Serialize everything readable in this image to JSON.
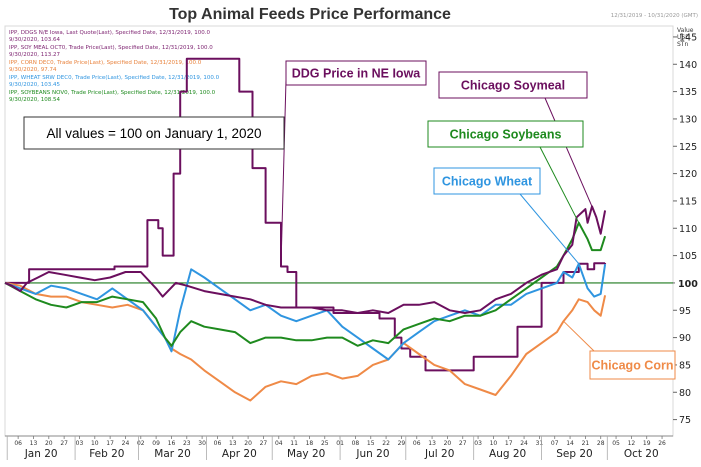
{
  "chart_data": {
    "type": "line",
    "title": "Top Animal Feeds Price Performance",
    "date_range_label": "12/31/2019 - 10/31/2020 (GMT)",
    "value_axis_label": [
      "Value",
      "USD",
      "STn"
    ],
    "ylim": [
      72,
      147
    ],
    "yticks": [
      75,
      80,
      85,
      90,
      95,
      100,
      105,
      110,
      115,
      120,
      125,
      130,
      135,
      140,
      145
    ],
    "x_day_labels": [
      "06",
      "13",
      "20",
      "27",
      "03",
      "10",
      "17",
      "24",
      "02",
      "09",
      "16",
      "23",
      "30",
      "06",
      "13",
      "20",
      "27",
      "04",
      "11",
      "18",
      "25",
      "01",
      "08",
      "15",
      "22",
      "29",
      "06",
      "13",
      "20",
      "27",
      "03",
      "10",
      "17",
      "24",
      "31",
      "07",
      "14",
      "21",
      "28",
      "05",
      "12",
      "19",
      "26"
    ],
    "months": [
      "Jan 20",
      "Feb 20",
      "Mar 20",
      "Apr 20",
      "May 20",
      "Jun 20",
      "Jul 20",
      "Aug 20",
      "Sep 20",
      "Oct 20"
    ],
    "x_start": "2019-12-31",
    "x_end": "2020-10-31",
    "legend": [
      {
        "line1": "IPP, DDGS N/E Iowa, Last Quote(Last), Specified Date, 12/31/2019, 100.0",
        "line2": "9/30/2020, 103.64",
        "color": "#7b1f6e"
      },
      {
        "line1": "IPP, SOY MEAL OCT0, Trade Price(Last), Specified Date, 12/31/2019, 100.0",
        "line2": "9/30/2020, 113.27",
        "color": "#7b1f6e"
      },
      {
        "line1": "IPP, CORN DEC0, Trade Price(Last), Specified Date, 12/31/2019, 100.0",
        "line2": "9/30/2020, 97.74",
        "color": "#e8803a"
      },
      {
        "line1": "IPP, WHEAT SRW DEC0, Trade Price(Last), Specified Date, 12/31/2019, 100.0",
        "line2": "9/30/2020, 103.45",
        "color": "#2f95e0"
      },
      {
        "line1": "IPP, SOYBEANS NOV0, Trade Price(Last), Specified Date, 12/31/2019, 100.0",
        "line2": "9/30/2020, 108.54",
        "color": "#1e8a1e"
      }
    ],
    "note": "All values = 100 on January 1, 2020",
    "reference_line": {
      "value": 100,
      "label": "100"
    },
    "series": [
      {
        "name": "DDG Price in NE Iowa",
        "color": "#6b0f5e",
        "stepped": true,
        "points": [
          [
            "2019-12-31",
            100
          ],
          [
            "2020-01-10",
            100
          ],
          [
            "2020-01-11",
            102.5
          ],
          [
            "2020-02-18",
            102.5
          ],
          [
            "2020-02-19",
            103
          ],
          [
            "2020-03-04",
            103
          ],
          [
            "2020-03-05",
            111.5
          ],
          [
            "2020-03-10",
            110
          ],
          [
            "2020-03-12",
            105
          ],
          [
            "2020-03-16",
            105
          ],
          [
            "2020-03-17",
            120
          ],
          [
            "2020-03-20",
            135
          ],
          [
            "2020-03-23",
            141
          ],
          [
            "2020-04-15",
            141
          ],
          [
            "2020-04-16",
            135
          ],
          [
            "2020-04-22",
            121
          ],
          [
            "2020-04-28",
            111
          ],
          [
            "2020-05-05",
            103
          ],
          [
            "2020-05-08",
            102
          ],
          [
            "2020-05-11",
            102
          ],
          [
            "2020-05-12",
            95.5
          ],
          [
            "2020-05-28",
            95.5
          ],
          [
            "2020-05-29",
            94.5
          ],
          [
            "2020-06-18",
            94.5
          ],
          [
            "2020-06-19",
            93.5
          ],
          [
            "2020-06-25",
            93.5
          ],
          [
            "2020-06-26",
            90
          ],
          [
            "2020-06-29",
            88
          ],
          [
            "2020-07-02",
            88
          ],
          [
            "2020-07-03",
            86.5
          ],
          [
            "2020-07-09",
            86.5
          ],
          [
            "2020-07-10",
            84
          ],
          [
            "2020-07-31",
            84
          ],
          [
            "2020-08-01",
            86.5
          ],
          [
            "2020-08-20",
            86.5
          ],
          [
            "2020-08-21",
            92
          ],
          [
            "2020-08-31",
            92
          ],
          [
            "2020-09-01",
            100
          ],
          [
            "2020-09-10",
            100
          ],
          [
            "2020-09-11",
            102
          ],
          [
            "2020-09-17",
            102
          ],
          [
            "2020-09-18",
            103.5
          ],
          [
            "2020-09-21",
            103.5
          ],
          [
            "2020-09-22",
            102.5
          ],
          [
            "2020-09-25",
            103.6
          ],
          [
            "2020-09-30",
            103.64
          ]
        ]
      },
      {
        "name": "Chicago Soymeal",
        "color": "#6b0f5e",
        "points": [
          [
            "2019-12-31",
            100
          ],
          [
            "2020-01-03",
            99.5
          ],
          [
            "2020-01-07",
            98.5
          ],
          [
            "2020-01-10",
            100
          ],
          [
            "2020-01-15",
            101
          ],
          [
            "2020-01-20",
            102
          ],
          [
            "2020-01-27",
            101.5
          ],
          [
            "2020-02-03",
            101
          ],
          [
            "2020-02-10",
            100.5
          ],
          [
            "2020-02-17",
            101
          ],
          [
            "2020-02-24",
            102
          ],
          [
            "2020-03-02",
            102
          ],
          [
            "2020-03-09",
            99
          ],
          [
            "2020-03-12",
            97.5
          ],
          [
            "2020-03-18",
            100
          ],
          [
            "2020-03-23",
            99.5
          ],
          [
            "2020-03-31",
            98.5
          ],
          [
            "2020-04-07",
            98
          ],
          [
            "2020-04-14",
            97.5
          ],
          [
            "2020-04-21",
            97
          ],
          [
            "2020-04-28",
            96
          ],
          [
            "2020-05-05",
            95.5
          ],
          [
            "2020-05-12",
            95.5
          ],
          [
            "2020-05-19",
            95.5
          ],
          [
            "2020-05-26",
            95
          ],
          [
            "2020-06-02",
            95
          ],
          [
            "2020-06-09",
            94.5
          ],
          [
            "2020-06-16",
            95
          ],
          [
            "2020-06-23",
            94.5
          ],
          [
            "2020-06-30",
            96
          ],
          [
            "2020-07-07",
            96
          ],
          [
            "2020-07-14",
            96.5
          ],
          [
            "2020-07-21",
            95
          ],
          [
            "2020-07-28",
            94.5
          ],
          [
            "2020-08-04",
            95
          ],
          [
            "2020-08-11",
            97
          ],
          [
            "2020-08-18",
            98
          ],
          [
            "2020-08-25",
            100
          ],
          [
            "2020-09-01",
            101.5
          ],
          [
            "2020-09-08",
            102.5
          ],
          [
            "2020-09-11",
            105
          ],
          [
            "2020-09-15",
            107
          ],
          [
            "2020-09-17",
            112
          ],
          [
            "2020-09-21",
            113.5
          ],
          [
            "2020-09-22",
            111
          ],
          [
            "2020-09-24",
            114
          ],
          [
            "2020-09-26",
            112
          ],
          [
            "2020-09-28",
            109
          ],
          [
            "2020-09-30",
            113.27
          ]
        ]
      },
      {
        "name": "Chicago Soybeans",
        "color": "#1e8a1e",
        "points": [
          [
            "2019-12-31",
            100
          ],
          [
            "2020-01-07",
            98.5
          ],
          [
            "2020-01-14",
            97
          ],
          [
            "2020-01-21",
            96
          ],
          [
            "2020-01-28",
            95.5
          ],
          [
            "2020-02-04",
            96.5
          ],
          [
            "2020-02-11",
            96.5
          ],
          [
            "2020-02-18",
            97.5
          ],
          [
            "2020-02-25",
            97
          ],
          [
            "2020-03-03",
            96.5
          ],
          [
            "2020-03-09",
            93.5
          ],
          [
            "2020-03-13",
            90
          ],
          [
            "2020-03-16",
            88.5
          ],
          [
            "2020-03-20",
            91
          ],
          [
            "2020-03-25",
            93
          ],
          [
            "2020-03-31",
            92
          ],
          [
            "2020-04-07",
            91.5
          ],
          [
            "2020-04-14",
            91
          ],
          [
            "2020-04-21",
            89
          ],
          [
            "2020-04-28",
            90
          ],
          [
            "2020-05-05",
            90
          ],
          [
            "2020-05-12",
            89.5
          ],
          [
            "2020-05-19",
            89.5
          ],
          [
            "2020-05-26",
            90
          ],
          [
            "2020-06-02",
            90
          ],
          [
            "2020-06-09",
            88.5
          ],
          [
            "2020-06-16",
            89.5
          ],
          [
            "2020-06-23",
            89
          ],
          [
            "2020-06-30",
            91.5
          ],
          [
            "2020-07-07",
            92.5
          ],
          [
            "2020-07-14",
            93.5
          ],
          [
            "2020-07-21",
            93
          ],
          [
            "2020-07-28",
            94
          ],
          [
            "2020-08-04",
            94
          ],
          [
            "2020-08-11",
            95
          ],
          [
            "2020-08-18",
            97
          ],
          [
            "2020-08-25",
            99
          ],
          [
            "2020-09-01",
            101
          ],
          [
            "2020-09-08",
            103
          ],
          [
            "2020-09-11",
            105
          ],
          [
            "2020-09-15",
            108
          ],
          [
            "2020-09-18",
            111
          ],
          [
            "2020-09-22",
            108
          ],
          [
            "2020-09-24",
            106
          ],
          [
            "2020-09-28",
            106
          ],
          [
            "2020-09-30",
            108.54
          ]
        ]
      },
      {
        "name": "Chicago Wheat",
        "color": "#2f95e0",
        "points": [
          [
            "2019-12-31",
            100
          ],
          [
            "2020-01-07",
            99
          ],
          [
            "2020-01-14",
            98
          ],
          [
            "2020-01-21",
            99.5
          ],
          [
            "2020-01-28",
            99
          ],
          [
            "2020-02-04",
            98
          ],
          [
            "2020-02-11",
            97
          ],
          [
            "2020-02-18",
            99
          ],
          [
            "2020-02-25",
            97
          ],
          [
            "2020-03-03",
            95
          ],
          [
            "2020-03-09",
            92
          ],
          [
            "2020-03-13",
            90
          ],
          [
            "2020-03-16",
            87.5
          ],
          [
            "2020-03-20",
            95
          ],
          [
            "2020-03-25",
            102.5
          ],
          [
            "2020-03-31",
            101
          ],
          [
            "2020-04-07",
            99
          ],
          [
            "2020-04-14",
            97
          ],
          [
            "2020-04-21",
            95
          ],
          [
            "2020-04-28",
            96
          ],
          [
            "2020-05-05",
            94
          ],
          [
            "2020-05-12",
            93
          ],
          [
            "2020-05-19",
            94
          ],
          [
            "2020-05-26",
            95
          ],
          [
            "2020-06-02",
            92
          ],
          [
            "2020-06-09",
            90
          ],
          [
            "2020-06-16",
            88
          ],
          [
            "2020-06-23",
            86
          ],
          [
            "2020-06-30",
            89
          ],
          [
            "2020-07-07",
            91
          ],
          [
            "2020-07-14",
            93
          ],
          [
            "2020-07-21",
            94
          ],
          [
            "2020-07-28",
            95
          ],
          [
            "2020-08-04",
            94
          ],
          [
            "2020-08-11",
            96
          ],
          [
            "2020-08-18",
            96
          ],
          [
            "2020-08-25",
            98
          ],
          [
            "2020-09-01",
            99
          ],
          [
            "2020-09-08",
            100
          ],
          [
            "2020-09-11",
            102
          ],
          [
            "2020-09-15",
            101
          ],
          [
            "2020-09-18",
            103.5
          ],
          [
            "2020-09-22",
            99
          ],
          [
            "2020-09-25",
            97.5
          ],
          [
            "2020-09-28",
            98
          ],
          [
            "2020-09-30",
            103.45
          ]
        ]
      },
      {
        "name": "Chicago Corn",
        "color": "#ef8a47",
        "points": [
          [
            "2019-12-31",
            100
          ],
          [
            "2020-01-07",
            99.5
          ],
          [
            "2020-01-14",
            98
          ],
          [
            "2020-01-21",
            97.5
          ],
          [
            "2020-01-28",
            97.5
          ],
          [
            "2020-02-04",
            96.5
          ],
          [
            "2020-02-11",
            96
          ],
          [
            "2020-02-18",
            95.5
          ],
          [
            "2020-02-25",
            96
          ],
          [
            "2020-03-03",
            95
          ],
          [
            "2020-03-09",
            92
          ],
          [
            "2020-03-13",
            90
          ],
          [
            "2020-03-16",
            88
          ],
          [
            "2020-03-20",
            87
          ],
          [
            "2020-03-25",
            86
          ],
          [
            "2020-03-31",
            84
          ],
          [
            "2020-04-07",
            82
          ],
          [
            "2020-04-14",
            80
          ],
          [
            "2020-04-21",
            78.5
          ],
          [
            "2020-04-28",
            81
          ],
          [
            "2020-05-05",
            82
          ],
          [
            "2020-05-12",
            81.5
          ],
          [
            "2020-05-19",
            83
          ],
          [
            "2020-05-26",
            83.5
          ],
          [
            "2020-06-02",
            82.5
          ],
          [
            "2020-06-09",
            83
          ],
          [
            "2020-06-16",
            85
          ],
          [
            "2020-06-23",
            86
          ],
          [
            "2020-06-30",
            89
          ],
          [
            "2020-07-07",
            87
          ],
          [
            "2020-07-14",
            85
          ],
          [
            "2020-07-21",
            84
          ],
          [
            "2020-07-28",
            81.5
          ],
          [
            "2020-08-04",
            80.5
          ],
          [
            "2020-08-11",
            79.5
          ],
          [
            "2020-08-18",
            83
          ],
          [
            "2020-08-25",
            87
          ],
          [
            "2020-09-01",
            89
          ],
          [
            "2020-09-08",
            91
          ],
          [
            "2020-09-11",
            93
          ],
          [
            "2020-09-15",
            95
          ],
          [
            "2020-09-18",
            97
          ],
          [
            "2020-09-22",
            96.5
          ],
          [
            "2020-09-25",
            95
          ],
          [
            "2020-09-28",
            94
          ],
          [
            "2020-09-30",
            97.74
          ]
        ]
      }
    ]
  }
}
